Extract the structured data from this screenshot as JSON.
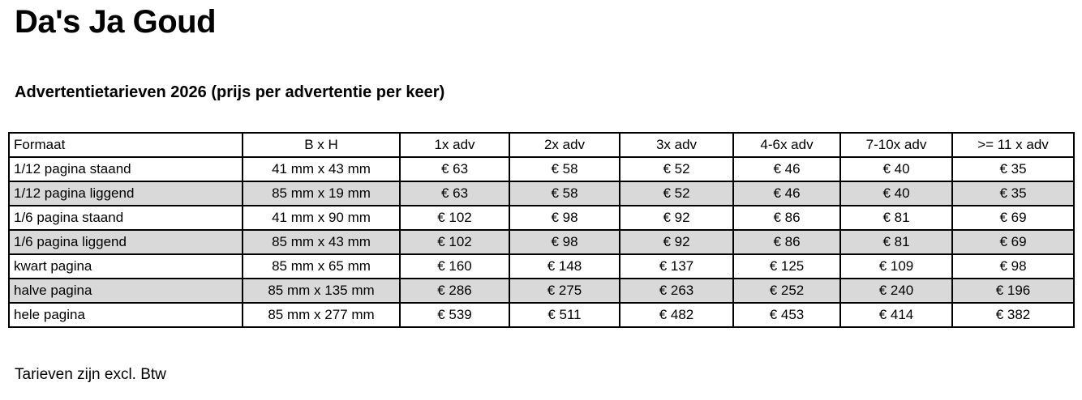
{
  "header": {
    "title": "Da's Ja Goud",
    "subtitle": "Advertentietarieven 2026 (prijs per advertentie per keer)"
  },
  "table": {
    "columns": [
      "Formaat",
      "B x H",
      "1x adv",
      "2x adv",
      "3x adv",
      "4-6x adv",
      "7-10x adv",
      ">= 11 x adv"
    ],
    "rows": [
      [
        "1/12 pagina staand",
        "41 mm x 43 mm",
        "€ 63",
        "€ 58",
        "€ 52",
        "€ 46",
        "€ 40",
        "€ 35"
      ],
      [
        "1/12 pagina liggend",
        "85 mm x 19 mm",
        "€ 63",
        "€ 58",
        "€ 52",
        "€ 46",
        "€ 40",
        "€ 35"
      ],
      [
        "1/6 pagina staand",
        "41 mm x 90 mm",
        "€ 102",
        "€ 98",
        "€ 92",
        "€ 86",
        "€ 81",
        "€ 69"
      ],
      [
        "1/6 pagina liggend",
        "85 mm x 43 mm",
        "€ 102",
        "€ 98",
        "€ 92",
        "€ 86",
        "€ 81",
        "€ 69"
      ],
      [
        "kwart pagina",
        "85 mm x 65 mm",
        "€ 160",
        "€ 148",
        "€ 137",
        "€ 125",
        "€ 109",
        "€ 98"
      ],
      [
        "halve pagina",
        "85 mm x 135 mm",
        "€ 286",
        "€ 275",
        "€ 263",
        "€ 252",
        "€ 240",
        "€ 196"
      ],
      [
        "hele pagina",
        "85 mm x 277 mm",
        "€ 539",
        "€ 511",
        "€ 482",
        "€ 453",
        "€ 414",
        "€ 382"
      ]
    ]
  },
  "footer": {
    "note": "Tarieven zijn excl. Btw"
  },
  "colors": {
    "row_shade": "#d9d9d9",
    "border": "#000000",
    "text": "#000000",
    "background": "#ffffff"
  }
}
